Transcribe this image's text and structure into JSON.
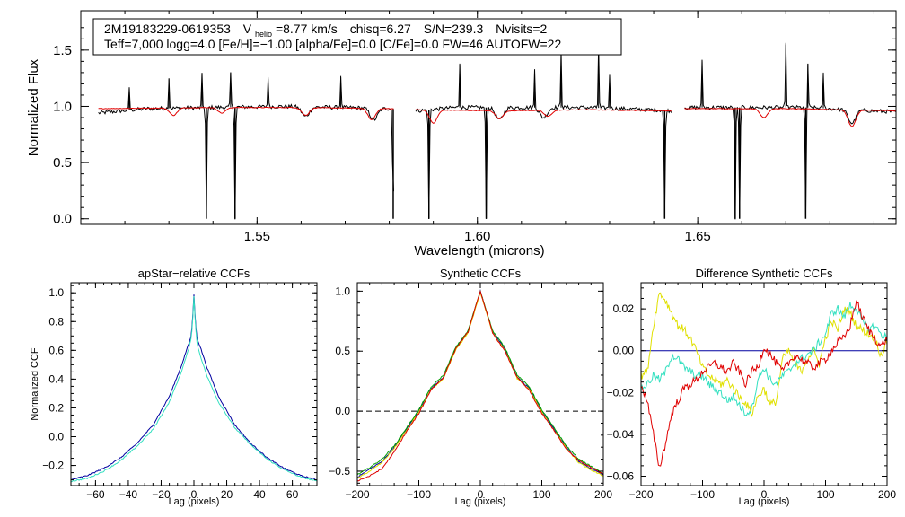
{
  "info": {
    "star_id": "2M19183229-0619353",
    "v_label": "V",
    "v_sub": "helio",
    "vhelio": "=8.77 km/s",
    "chisq": "chisq=6.27",
    "snr": "S/N=239.3",
    "nvisits": "Nvisits=2",
    "params": "Teff=7,000 logg=4.0 [Fe/H]=−1.00 [alpha/Fe]=0.0 [C/Fe]=0.0 FW=46 AUTOFW=22"
  },
  "colors": {
    "observed": "#000000",
    "model": "#e00000",
    "cyan": "#33e0c0",
    "navy": "#0000a0",
    "green": "#00a000",
    "yellow": "#e0e000",
    "red": "#e00000"
  },
  "chart_data": [
    {
      "type": "line",
      "title": "",
      "xlabel": "Wavelength (microns)",
      "ylabel": "Normalized Flux",
      "xlim": [
        1.51,
        1.695
      ],
      "ylim": [
        -0.05,
        1.85
      ],
      "xticks": [
        1.55,
        1.6,
        1.65
      ],
      "xtick_labels": [
        "1.55",
        "1.60",
        "1.65"
      ],
      "yticks": [
        0.0,
        0.5,
        1.0,
        1.5
      ],
      "ytick_labels": [
        "0.0",
        "0.5",
        "1.0",
        "1.5"
      ],
      "chip_ranges": [
        [
          1.514,
          1.581
        ],
        [
          1.586,
          1.644
        ],
        [
          1.647,
          1.695
        ]
      ],
      "series": [
        {
          "name": "observed",
          "color": "black",
          "continuum": [
            [
              1.514,
              0.94
            ],
            [
              1.525,
              0.98
            ],
            [
              1.54,
              0.99
            ],
            [
              1.555,
              1.0
            ],
            [
              1.57,
              0.99
            ],
            [
              1.58,
              0.98
            ],
            [
              1.586,
              0.96
            ],
            [
              1.595,
              0.99
            ],
            [
              1.61,
              0.99
            ],
            [
              1.625,
              0.99
            ],
            [
              1.64,
              0.97
            ],
            [
              1.644,
              0.96
            ],
            [
              1.647,
              0.99
            ],
            [
              1.66,
              0.99
            ],
            [
              1.675,
              0.99
            ],
            [
              1.695,
              0.95
            ]
          ],
          "absorption_dips": [
            [
              1.5385,
              0.0
            ],
            [
              1.545,
              0.0
            ],
            [
              1.5809,
              0.0
            ],
            [
              1.589,
              0.0
            ],
            [
              1.602,
              0.0
            ],
            [
              1.6425,
              0.0
            ],
            [
              1.6585,
              0.0
            ],
            [
              1.6595,
              0.0
            ],
            [
              1.6745,
              0.0
            ],
            [
              1.561,
              0.91
            ],
            [
              1.5765,
              0.88
            ],
            [
              1.605,
              0.88
            ],
            [
              1.615,
              0.9
            ],
            [
              1.685,
              0.85
            ]
          ],
          "emission_spikes": [
            [
              1.521,
              1.17
            ],
            [
              1.53,
              1.25
            ],
            [
              1.5375,
              1.28
            ],
            [
              1.544,
              1.3
            ],
            [
              1.5525,
              1.26
            ],
            [
              1.569,
              1.27
            ],
            [
              1.596,
              1.38
            ],
            [
              1.613,
              1.33
            ],
            [
              1.619,
              1.5
            ],
            [
              1.6275,
              1.53
            ],
            [
              1.63,
              1.28
            ],
            [
              1.651,
              1.4
            ],
            [
              1.67,
              1.55
            ],
            [
              1.675,
              1.38
            ],
            [
              1.6785,
              1.3
            ]
          ]
        },
        {
          "name": "model",
          "color": "red",
          "continuum": [
            [
              1.514,
              0.98
            ],
            [
              1.54,
              0.99
            ],
            [
              1.56,
              0.99
            ],
            [
              1.58,
              0.98
            ],
            [
              1.586,
              0.97
            ],
            [
              1.605,
              0.96
            ],
            [
              1.625,
              0.97
            ],
            [
              1.644,
              0.96
            ],
            [
              1.647,
              0.98
            ],
            [
              1.67,
              0.98
            ],
            [
              1.695,
              0.96
            ]
          ],
          "absorption_dips": [
            [
              1.531,
              0.92
            ],
            [
              1.542,
              0.94
            ],
            [
              1.561,
              0.92
            ],
            [
              1.576,
              0.88
            ],
            [
              1.59,
              0.85
            ],
            [
              1.605,
              0.89
            ],
            [
              1.616,
              0.91
            ],
            [
              1.665,
              0.9
            ],
            [
              1.685,
              0.82
            ]
          ]
        }
      ]
    },
    {
      "type": "line",
      "title": "apStar−relative CCFs",
      "xlabel": "Lag (pixels)",
      "ylabel": "Normalized CCF",
      "xlim": [
        -75,
        75
      ],
      "ylim": [
        -0.34,
        1.07
      ],
      "xticks": [
        -60,
        -40,
        -20,
        0,
        20,
        40,
        60
      ],
      "xtick_labels": [
        "−60",
        "−40",
        "−20",
        "0",
        "20",
        "40",
        "60"
      ],
      "yticks": [
        -0.2,
        0.0,
        0.2,
        0.4,
        0.6,
        0.8,
        1.0
      ],
      "ytick_labels": [
        "−0.2",
        "0.0",
        "0.2",
        "0.4",
        "0.6",
        "0.8",
        "1.0"
      ],
      "series": [
        {
          "name": "visit-1",
          "color": "navy",
          "x": [
            -75,
            -65,
            -55,
            -45,
            -35,
            -25,
            -15,
            -8,
            -4,
            -2,
            -1,
            0,
            1,
            2,
            4,
            8,
            15,
            25,
            35,
            45,
            55,
            65,
            75
          ],
          "y": [
            -0.3,
            -0.27,
            -0.22,
            -0.15,
            -0.05,
            0.08,
            0.28,
            0.48,
            0.62,
            0.68,
            0.78,
            0.99,
            0.78,
            0.68,
            0.62,
            0.48,
            0.28,
            0.08,
            -0.05,
            -0.15,
            -0.22,
            -0.27,
            -0.3
          ]
        },
        {
          "name": "visit-2",
          "color": "cyan",
          "x": [
            -75,
            -65,
            -55,
            -45,
            -35,
            -25,
            -15,
            -8,
            -4,
            -2,
            -1,
            0,
            1,
            2,
            4,
            8,
            15,
            25,
            35,
            45,
            55,
            65,
            75
          ],
          "y": [
            -0.31,
            -0.29,
            -0.24,
            -0.17,
            -0.07,
            0.05,
            0.24,
            0.44,
            0.58,
            0.66,
            0.76,
            0.98,
            0.76,
            0.64,
            0.56,
            0.42,
            0.24,
            0.06,
            -0.06,
            -0.16,
            -0.23,
            -0.28,
            -0.31
          ]
        }
      ]
    },
    {
      "type": "line",
      "title": "Synthetic CCFs",
      "xlabel": "Lag (pixels)",
      "ylabel": "",
      "xlim": [
        -200,
        200
      ],
      "ylim": [
        -0.62,
        1.07
      ],
      "xticks": [
        -200,
        -100,
        0,
        100,
        200
      ],
      "xtick_labels": [
        "−200",
        "−100",
        "0",
        "100",
        "200"
      ],
      "yticks": [
        -0.5,
        0.0,
        0.5,
        1.0
      ],
      "ytick_labels": [
        "−0.5",
        "0.0",
        "0.5",
        "1.0"
      ],
      "reference_line": 0.0,
      "series": [
        {
          "name": "navy",
          "color": "navy",
          "x": [
            -200,
            -180,
            -160,
            -140,
            -120,
            -100,
            -80,
            -60,
            -40,
            -20,
            0,
            20,
            40,
            60,
            80,
            100,
            120,
            140,
            160,
            180,
            200
          ],
          "y": [
            -0.55,
            -0.48,
            -0.42,
            -0.3,
            -0.15,
            0.0,
            0.19,
            0.28,
            0.52,
            0.66,
            1.0,
            0.66,
            0.52,
            0.28,
            0.19,
            0.0,
            -0.15,
            -0.3,
            -0.42,
            -0.48,
            -0.53
          ]
        },
        {
          "name": "green",
          "color": "green",
          "x": [
            -200,
            -180,
            -160,
            -140,
            -120,
            -100,
            -80,
            -60,
            -40,
            -20,
            0,
            20,
            40,
            60,
            80,
            100,
            120,
            140,
            160,
            180,
            200
          ],
          "y": [
            -0.53,
            -0.47,
            -0.4,
            -0.29,
            -0.14,
            0.01,
            0.2,
            0.3,
            0.53,
            0.67,
            1.0,
            0.67,
            0.53,
            0.3,
            0.2,
            0.01,
            -0.14,
            -0.29,
            -0.4,
            -0.46,
            -0.52
          ]
        },
        {
          "name": "yellow",
          "color": "yellow",
          "x": [
            -200,
            -180,
            -160,
            -140,
            -120,
            -100,
            -80,
            -60,
            -40,
            -20,
            0,
            20,
            40,
            60,
            80,
            100,
            120,
            140,
            160,
            180,
            200
          ],
          "y": [
            -0.56,
            -0.5,
            -0.43,
            -0.31,
            -0.16,
            -0.01,
            0.18,
            0.27,
            0.51,
            0.65,
            0.99,
            0.65,
            0.51,
            0.27,
            0.18,
            -0.01,
            -0.16,
            -0.31,
            -0.43,
            -0.49,
            -0.54
          ]
        },
        {
          "name": "red",
          "color": "red",
          "x": [
            -200,
            -180,
            -160,
            -140,
            -120,
            -100,
            -80,
            -60,
            -40,
            -20,
            0,
            20,
            40,
            60,
            80,
            100,
            120,
            140,
            160,
            180,
            200
          ],
          "y": [
            -0.58,
            -0.54,
            -0.48,
            -0.34,
            -0.17,
            -0.02,
            0.18,
            0.28,
            0.52,
            0.66,
            1.0,
            0.65,
            0.5,
            0.28,
            0.17,
            -0.02,
            -0.16,
            -0.32,
            -0.41,
            -0.47,
            -0.52
          ]
        }
      ]
    },
    {
      "type": "line",
      "title": "Difference Synthetic CCFs",
      "xlabel": "Lag (pixels)",
      "ylabel": "",
      "xlim": [
        -200,
        200
      ],
      "ylim": [
        -0.0645,
        0.0325
      ],
      "xticks": [
        -200,
        -100,
        0,
        100,
        200
      ],
      "xtick_labels": [
        "−200",
        "−100",
        "0",
        "100",
        "200"
      ],
      "yticks": [
        -0.06,
        -0.04,
        -0.02,
        0.0,
        0.02
      ],
      "ytick_labels": [
        "−0.06",
        "−0.04",
        "−0.02",
        "0.00",
        "0.02"
      ],
      "series": [
        {
          "name": "zero-line",
          "color": "navy",
          "x": [
            -200,
            200
          ],
          "y": [
            0.0,
            0.0
          ]
        },
        {
          "name": "yellow",
          "color": "yellow",
          "x": [
            -200,
            -190,
            -180,
            -170,
            -160,
            -150,
            -140,
            -130,
            -120,
            -110,
            -100,
            -90,
            -80,
            -70,
            -60,
            -50,
            -40,
            -30,
            -20,
            -10,
            0,
            10,
            20,
            30,
            40,
            50,
            60,
            70,
            80,
            90,
            100,
            110,
            120,
            130,
            140,
            150,
            160,
            170,
            180,
            190,
            200
          ],
          "y": [
            -0.012,
            -0.01,
            0.012,
            0.028,
            0.024,
            0.018,
            0.012,
            0.01,
            0.006,
            0.0,
            -0.008,
            -0.012,
            -0.014,
            -0.016,
            -0.014,
            -0.018,
            -0.022,
            -0.025,
            -0.03,
            -0.022,
            -0.018,
            -0.026,
            -0.024,
            -0.004,
            0.0,
            -0.006,
            -0.01,
            -0.004,
            0.0,
            -0.006,
            0.006,
            0.014,
            0.01,
            0.02,
            0.018,
            0.012,
            0.01,
            0.008,
            0.006,
            -0.002,
            0.004
          ]
        },
        {
          "name": "cyan",
          "color": "cyan",
          "x": [
            -200,
            -190,
            -180,
            -170,
            -160,
            -150,
            -140,
            -130,
            -120,
            -110,
            -100,
            -90,
            -80,
            -70,
            -60,
            -50,
            -40,
            -30,
            -20,
            -10,
            0,
            10,
            20,
            30,
            40,
            50,
            60,
            70,
            80,
            90,
            100,
            110,
            120,
            130,
            140,
            150,
            160,
            170,
            180,
            190,
            200
          ],
          "y": [
            -0.018,
            -0.016,
            -0.012,
            -0.014,
            -0.01,
            -0.002,
            -0.004,
            -0.008,
            -0.01,
            -0.012,
            -0.012,
            -0.016,
            -0.018,
            -0.02,
            -0.024,
            -0.022,
            -0.026,
            -0.03,
            -0.028,
            -0.014,
            -0.008,
            -0.014,
            -0.016,
            -0.012,
            -0.01,
            -0.006,
            -0.004,
            -0.002,
            0.0,
            0.004,
            0.008,
            0.018,
            0.02,
            0.016,
            0.022,
            0.02,
            0.014,
            0.01,
            0.012,
            0.008,
            0.006
          ]
        },
        {
          "name": "red",
          "color": "red",
          "x": [
            -200,
            -190,
            -180,
            -170,
            -160,
            -150,
            -140,
            -130,
            -120,
            -110,
            -100,
            -90,
            -80,
            -70,
            -60,
            -50,
            -40,
            -30,
            -20,
            -10,
            0,
            10,
            20,
            30,
            40,
            50,
            60,
            70,
            80,
            90,
            100,
            110,
            120,
            130,
            140,
            150,
            160,
            170,
            180,
            190,
            200
          ],
          "y": [
            -0.016,
            -0.024,
            -0.04,
            -0.056,
            -0.044,
            -0.03,
            -0.024,
            -0.018,
            -0.016,
            -0.014,
            -0.01,
            -0.008,
            -0.006,
            -0.008,
            -0.01,
            -0.006,
            -0.01,
            -0.016,
            -0.01,
            -0.008,
            0.002,
            -0.002,
            -0.006,
            -0.01,
            -0.006,
            -0.002,
            -0.004,
            -0.006,
            -0.008,
            -0.006,
            -0.004,
            0.0,
            0.004,
            0.006,
            0.012,
            0.024,
            0.016,
            0.01,
            0.006,
            0.002,
            0.006
          ]
        }
      ]
    }
  ]
}
